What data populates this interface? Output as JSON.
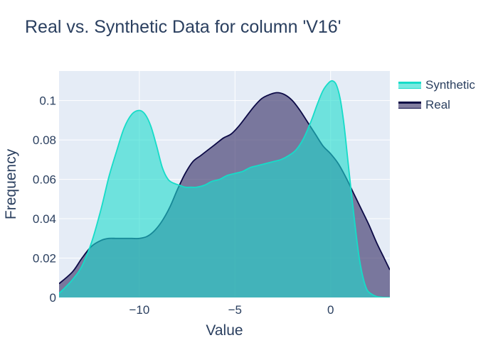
{
  "chart_data": {
    "type": "area",
    "title": "Real vs. Synthetic Data for column 'V16'",
    "xlabel": "Value",
    "ylabel": "Frequency",
    "xlim": [
      -14.2,
      3.1
    ],
    "ylim": [
      0,
      0.115
    ],
    "x_ticks": [
      -10,
      -5,
      0
    ],
    "x_tick_labels": [
      "−10",
      "−5",
      "0"
    ],
    "y_ticks": [
      0,
      0.02,
      0.04,
      0.06,
      0.08,
      0.1
    ],
    "y_tick_labels": [
      "0",
      "0.02",
      "0.04",
      "0.06",
      "0.08",
      "0.1"
    ],
    "grid": true,
    "legend_position": "top-right",
    "series": [
      {
        "name": "Synthetic",
        "color": "#2ee6d2",
        "fill": "rgba(30,220,205,0.6)",
        "line": "#16dcc8",
        "x": [
          -14.2,
          -13.5,
          -13.0,
          -12.5,
          -12.0,
          -11.6,
          -11.2,
          -10.8,
          -10.4,
          -10.0,
          -9.7,
          -9.4,
          -9.1,
          -8.8,
          -8.5,
          -8.2,
          -7.9,
          -7.6,
          -7.3,
          -7.0,
          -6.6,
          -6.2,
          -5.8,
          -5.4,
          -5.0,
          -4.6,
          -4.2,
          -3.8,
          -3.4,
          -3.0,
          -2.6,
          -2.2,
          -1.8,
          -1.4,
          -1.0,
          -0.7,
          -0.4,
          -0.1,
          0.1,
          0.3,
          0.5,
          0.7,
          0.9,
          1.1,
          1.3,
          1.5,
          1.7,
          1.9,
          2.1,
          2.4,
          2.7,
          3.1
        ],
        "values": [
          0.002,
          0.009,
          0.016,
          0.028,
          0.045,
          0.061,
          0.074,
          0.086,
          0.093,
          0.095,
          0.093,
          0.087,
          0.077,
          0.066,
          0.06,
          0.058,
          0.057,
          0.056,
          0.056,
          0.056,
          0.057,
          0.059,
          0.06,
          0.062,
          0.063,
          0.064,
          0.066,
          0.067,
          0.068,
          0.069,
          0.07,
          0.072,
          0.075,
          0.081,
          0.09,
          0.098,
          0.105,
          0.109,
          0.11,
          0.108,
          0.101,
          0.088,
          0.07,
          0.052,
          0.035,
          0.02,
          0.01,
          0.004,
          0.002,
          0.0005,
          0.0001,
          0
        ]
      },
      {
        "name": "Real",
        "color": "#0c0a46",
        "fill": "rgba(75,70,120,0.7)",
        "line": "#0c0a46",
        "x": [
          -14.2,
          -13.5,
          -13.0,
          -12.5,
          -12.0,
          -11.6,
          -11.2,
          -10.8,
          -10.4,
          -10.0,
          -9.6,
          -9.2,
          -8.8,
          -8.4,
          -8.0,
          -7.6,
          -7.2,
          -6.8,
          -6.4,
          -6.0,
          -5.6,
          -5.2,
          -4.8,
          -4.4,
          -4.0,
          -3.6,
          -3.2,
          -2.8,
          -2.4,
          -2.0,
          -1.6,
          -1.2,
          -0.8,
          -0.4,
          0.0,
          0.4,
          0.8,
          1.2,
          1.6,
          2.0,
          2.4,
          2.8,
          3.1
        ],
        "values": [
          0.007,
          0.013,
          0.02,
          0.026,
          0.029,
          0.03,
          0.03,
          0.03,
          0.03,
          0.03,
          0.031,
          0.034,
          0.039,
          0.046,
          0.055,
          0.063,
          0.069,
          0.072,
          0.075,
          0.078,
          0.081,
          0.083,
          0.087,
          0.092,
          0.097,
          0.101,
          0.103,
          0.104,
          0.103,
          0.1,
          0.095,
          0.089,
          0.083,
          0.077,
          0.073,
          0.068,
          0.061,
          0.053,
          0.045,
          0.037,
          0.028,
          0.02,
          0.014
        ]
      }
    ]
  }
}
